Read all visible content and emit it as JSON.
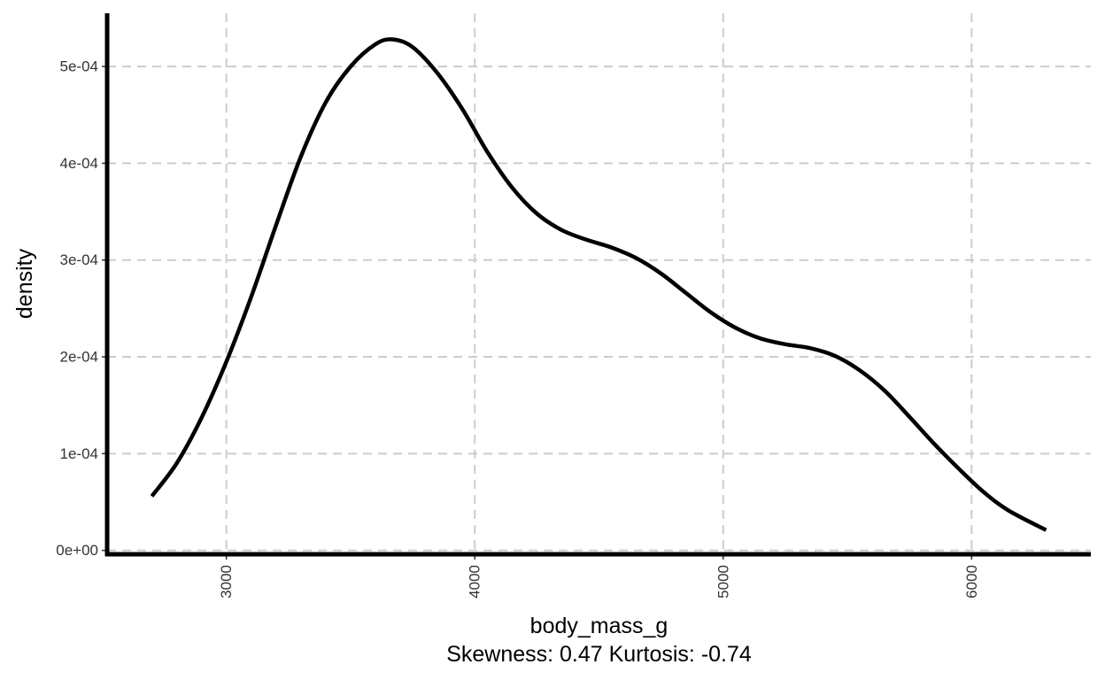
{
  "chart_data": {
    "type": "line",
    "xlabel": "body_mass_g",
    "ylabel": "density",
    "caption": "Skewness: 0.47 Kurtosis: -0.74",
    "xlim": [
      2520,
      6480
    ],
    "ylim": [
      -4e-06,
      0.000555
    ],
    "x_ticks": [
      3000,
      4000,
      5000,
      6000
    ],
    "x_tick_labels": [
      "3000",
      "4000",
      "5000",
      "6000"
    ],
    "y_ticks": [
      0,
      0.0001,
      0.0002,
      0.0003,
      0.0004,
      0.0005
    ],
    "y_tick_labels": [
      "0e+00",
      "1e-04",
      "2e-04",
      "3e-04",
      "4e-04",
      "5e-04"
    ],
    "grid": true,
    "series": [
      {
        "color": "#000000",
        "x": [
          2700,
          2800,
          2900,
          3000,
          3100,
          3200,
          3300,
          3400,
          3500,
          3600,
          3670,
          3750,
          3850,
          3950,
          4050,
          4150,
          4250,
          4350,
          4450,
          4550,
          4650,
          4750,
          4850,
          4950,
          5050,
          5150,
          5250,
          5350,
          5450,
          5550,
          5650,
          5750,
          5850,
          5950,
          6050,
          6150,
          6300
        ],
        "y": [
          5.6e-05,
          9e-05,
          0.000137,
          0.000195,
          0.000262,
          0.000336,
          0.000407,
          0.000463,
          0.0005,
          0.000523,
          0.000528,
          0.00052,
          0.000493,
          0.000456,
          0.000412,
          0.000375,
          0.000348,
          0.000331,
          0.000321,
          0.000313,
          0.000302,
          0.000286,
          0.000266,
          0.000246,
          0.00023,
          0.000219,
          0.000213,
          0.000209,
          0.000201,
          0.000186,
          0.000165,
          0.000138,
          0.00011,
          8.4e-05,
          6e-05,
          4.1e-05,
          2.1e-05
        ]
      }
    ]
  }
}
